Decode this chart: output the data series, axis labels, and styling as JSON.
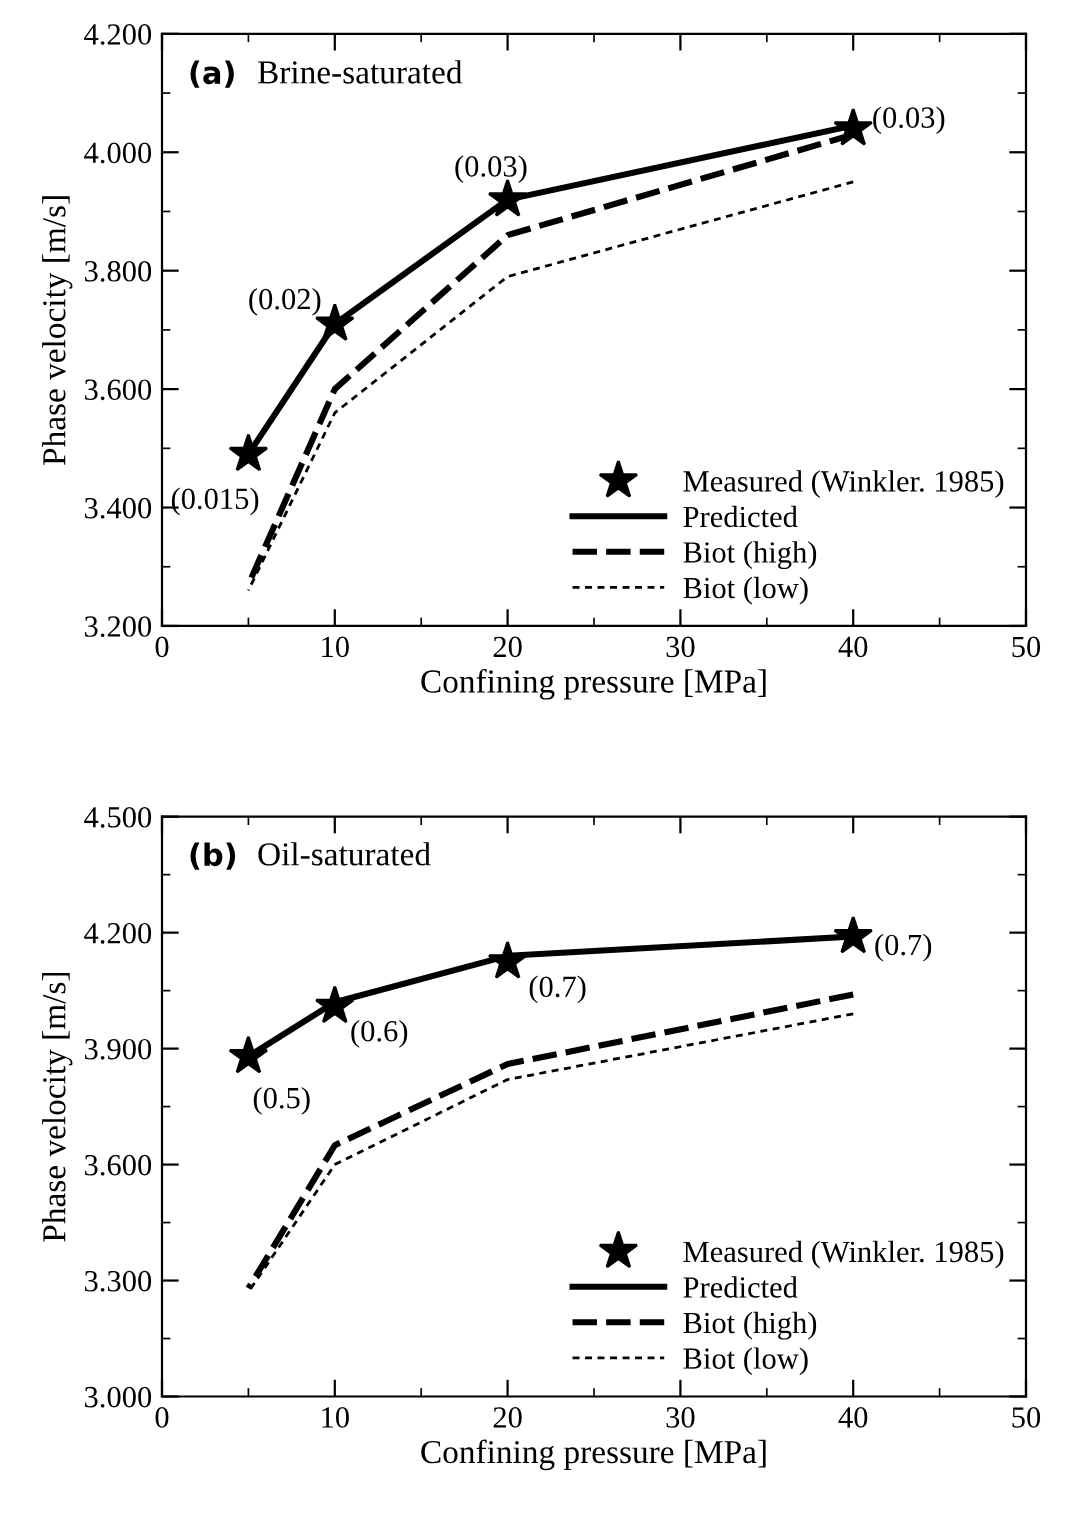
{
  "chart_data": [
    {
      "type": "line",
      "title": "(a)",
      "subtitle": "Brine-saturated",
      "xlabel": "Confining pressure [MPa]",
      "ylabel": "Phase velocity [m/s]",
      "x": [
        5,
        10,
        20,
        40
      ],
      "series": [
        {
          "name": "Measured (Winkler. 1985)",
          "type": "scatter",
          "color": "#000000",
          "marker": "star",
          "values": [
            3.49,
            3.71,
            3.92,
            4.04
          ]
        },
        {
          "name": "Predicted",
          "color": "#000000",
          "line_style": "solid",
          "values": [
            3.49,
            3.71,
            3.92,
            4.045
          ]
        },
        {
          "name": "Biot (high)",
          "color": "#000000",
          "line_style": "dashed",
          "values": [
            3.27,
            3.6,
            3.86,
            4.03
          ]
        },
        {
          "name": "Biot (low)",
          "color": "#000000",
          "line_style": "dotted",
          "values": [
            3.26,
            3.56,
            3.79,
            3.95
          ]
        }
      ],
      "xlim": [
        0,
        50
      ],
      "xticks": [
        0,
        10,
        20,
        30,
        40,
        50
      ],
      "ylim": [
        3.2,
        4.2
      ],
      "yticks": [
        {
          "value": 3.2,
          "label": "3.200"
        },
        {
          "value": 3.4,
          "label": "3.400"
        },
        {
          "value": 3.6,
          "label": "3.600"
        },
        {
          "value": 3.8,
          "label": "3.800"
        },
        {
          "value": 4.0,
          "label": "4.000"
        },
        {
          "value": 4.2,
          "label": "4.200"
        }
      ],
      "legend": "bottom right",
      "grid": false,
      "annotations": [
        {
          "text": "(0.015)",
          "x": 5,
          "y": 3.49
        },
        {
          "text": "(0.02)",
          "x": 10,
          "y": 3.71
        },
        {
          "text": "(0.03)",
          "x": 20,
          "y": 3.92
        },
        {
          "text": "(0.03)",
          "x": 40,
          "y": 4.04
        }
      ]
    },
    {
      "type": "line",
      "title": "(b)",
      "subtitle": "Oil-saturated",
      "xlabel": "Confining pressure [MPa]",
      "ylabel": "Phase velocity [m/s]",
      "x": [
        5,
        10,
        20,
        40
      ],
      "series": [
        {
          "name": "Measured (Winkler. 1985)",
          "type": "scatter",
          "color": "#000000",
          "marker": "star",
          "values": [
            3.88,
            4.01,
            4.125,
            4.19
          ]
        },
        {
          "name": "Predicted",
          "color": "#000000",
          "line_style": "solid",
          "values": [
            3.88,
            4.02,
            4.14,
            4.19
          ]
        },
        {
          "name": "Biot (high)",
          "color": "#000000",
          "line_style": "dashed",
          "values": [
            3.28,
            3.65,
            3.86,
            4.04
          ]
        },
        {
          "name": "Biot (low)",
          "color": "#000000",
          "line_style": "dotted",
          "values": [
            3.27,
            3.6,
            3.82,
            3.99
          ]
        }
      ],
      "xlim": [
        0,
        50
      ],
      "xticks": [
        0,
        10,
        20,
        30,
        40,
        50
      ],
      "ylim": [
        3.0,
        4.5
      ],
      "yticks": [
        {
          "value": 3.0,
          "label": "3.000"
        },
        {
          "value": 3.3,
          "label": "3.300"
        },
        {
          "value": 3.6,
          "label": "3.600"
        },
        {
          "value": 3.9,
          "label": "3.900"
        },
        {
          "value": 4.2,
          "label": "4.200"
        },
        {
          "value": 4.5,
          "label": "4.500"
        }
      ],
      "legend": "bottom right",
      "grid": false,
      "annotations": [
        {
          "text": "(0.5)",
          "x": 5,
          "y": 3.88
        },
        {
          "text": "(0.6)",
          "x": 10,
          "y": 4.01
        },
        {
          "text": "(0.7)",
          "x": 20,
          "y": 4.125
        },
        {
          "text": "(0.7)",
          "x": 40,
          "y": 4.19
        }
      ]
    }
  ]
}
